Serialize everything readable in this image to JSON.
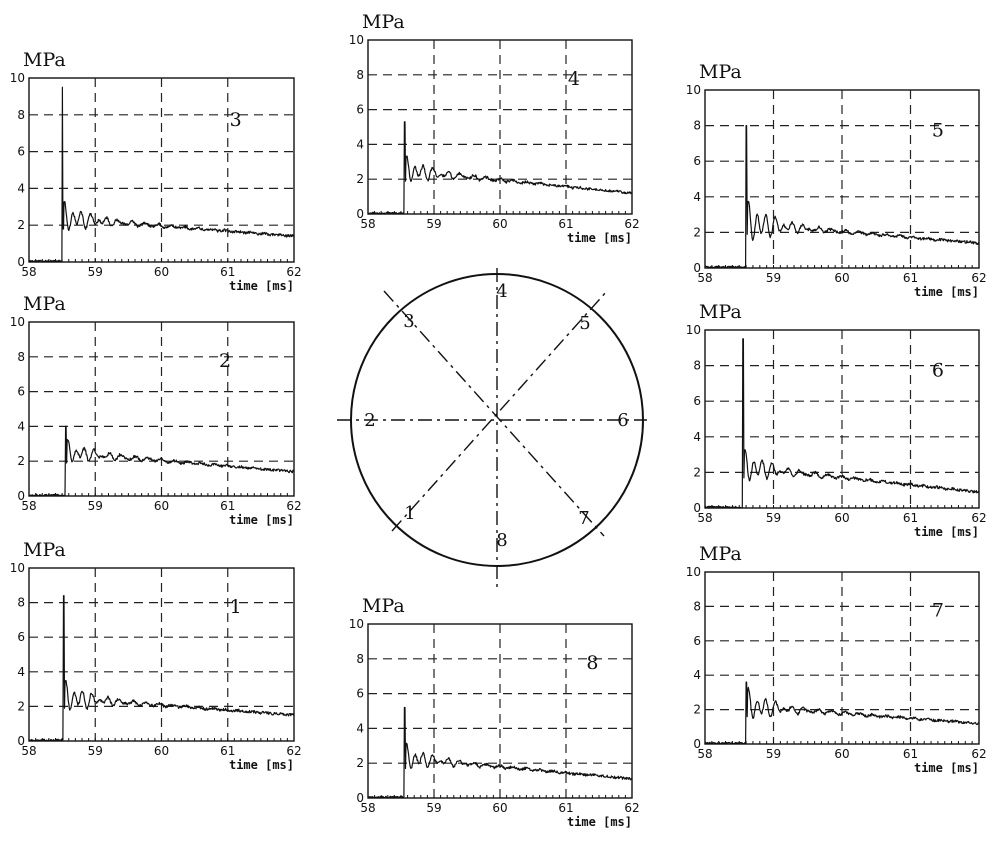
{
  "chart_data": [
    {
      "type": "line",
      "id": "1",
      "ylabel": "MPa",
      "xlabel": "time [ms]",
      "panel_label": "1",
      "xlim": [
        58,
        62
      ],
      "ylim": [
        0,
        10
      ],
      "grid": true,
      "xticks": [
        "58",
        "59",
        "60",
        "61",
        "62"
      ],
      "yticks": [
        "0",
        "2",
        "4",
        "6",
        "8",
        "10"
      ],
      "series": [
        {
          "onset": 58.52,
          "peak": 8.4,
          "osc": 0.9,
          "level_start": 2.5,
          "level_end": 1.5
        }
      ]
    },
    {
      "type": "line",
      "id": "2",
      "ylabel": "MPa",
      "xlabel": "time [ms]",
      "panel_label": "2",
      "xlim": [
        58,
        62
      ],
      "ylim": [
        0,
        10
      ],
      "grid": true,
      "xticks": [
        "58",
        "59",
        "60",
        "61",
        "62"
      ],
      "yticks": [
        "0",
        "2",
        "4",
        "6",
        "8",
        "10"
      ],
      "series": [
        {
          "onset": 58.55,
          "peak": 4.0,
          "osc": 0.6,
          "level_start": 2.5,
          "level_end": 1.4
        }
      ]
    },
    {
      "type": "line",
      "id": "3",
      "ylabel": "MPa",
      "xlabel": "time [ms]",
      "panel_label": "3",
      "xlim": [
        58,
        62
      ],
      "ylim": [
        0,
        10
      ],
      "grid": true,
      "xticks": [
        "58",
        "59",
        "60",
        "61",
        "62"
      ],
      "yticks": [
        "0",
        "2",
        "4",
        "6",
        "8",
        "10"
      ],
      "series": [
        {
          "onset": 58.5,
          "peak": 9.5,
          "osc": 0.8,
          "level_start": 2.4,
          "level_end": 1.4
        }
      ]
    },
    {
      "type": "line",
      "id": "4",
      "ylabel": "MPa",
      "xlabel": "time [ms]",
      "panel_label": "4",
      "xlim": [
        58,
        62
      ],
      "ylim": [
        0,
        10
      ],
      "grid": true,
      "xticks": [
        "58",
        "59",
        "60",
        "61",
        "62"
      ],
      "yticks": [
        "0",
        "2",
        "4",
        "6",
        "8",
        "10"
      ],
      "series": [
        {
          "onset": 58.55,
          "peak": 5.3,
          "osc": 0.7,
          "level_start": 2.5,
          "level_end": 1.2
        }
      ]
    },
    {
      "type": "line",
      "id": "5",
      "ylabel": "MPa",
      "xlabel": "time [ms]",
      "panel_label": "5",
      "xlim": [
        58,
        62
      ],
      "ylim": [
        0,
        10
      ],
      "grid": true,
      "xticks": [
        "58",
        "59",
        "60",
        "61",
        "62"
      ],
      "yticks": [
        "0",
        "2",
        "4",
        "6",
        "8",
        "10"
      ],
      "series": [
        {
          "onset": 58.6,
          "peak": 8.0,
          "osc": 1.2,
          "level_start": 2.5,
          "level_end": 1.4
        }
      ]
    },
    {
      "type": "line",
      "id": "6",
      "ylabel": "MPa",
      "xlabel": "time [ms]",
      "panel_label": "6",
      "xlim": [
        58,
        62
      ],
      "ylim": [
        0,
        10
      ],
      "grid": true,
      "xticks": [
        "58",
        "59",
        "60",
        "61",
        "62"
      ],
      "yticks": [
        "0",
        "2",
        "4",
        "6",
        "8",
        "10"
      ],
      "series": [
        {
          "onset": 58.55,
          "peak": 9.5,
          "osc": 0.9,
          "level_start": 2.3,
          "level_end": 0.9
        }
      ]
    },
    {
      "type": "line",
      "id": "7",
      "ylabel": "MPa",
      "xlabel": "time [ms]",
      "panel_label": "7",
      "xlim": [
        58,
        62
      ],
      "ylim": [
        0,
        10
      ],
      "grid": true,
      "xticks": [
        "58",
        "59",
        "60",
        "61",
        "62"
      ],
      "yticks": [
        "0",
        "2",
        "4",
        "6",
        "8",
        "10"
      ],
      "series": [
        {
          "onset": 58.6,
          "peak": 3.6,
          "osc": 0.9,
          "level_start": 2.2,
          "level_end": 1.2
        }
      ]
    },
    {
      "type": "line",
      "id": "8",
      "ylabel": "MPa",
      "xlabel": "time [ms]",
      "panel_label": "8",
      "xlim": [
        58,
        62
      ],
      "ylim": [
        0,
        10
      ],
      "grid": true,
      "xticks": [
        "58",
        "59",
        "60",
        "61",
        "62"
      ],
      "yticks": [
        "0",
        "2",
        "4",
        "6",
        "8",
        "10"
      ],
      "series": [
        {
          "onset": 58.55,
          "peak": 5.2,
          "osc": 0.7,
          "level_start": 2.3,
          "level_end": 1.1
        }
      ]
    }
  ],
  "diagram": {
    "labels": [
      "1",
      "2",
      "3",
      "4",
      "5",
      "6",
      "7",
      "8"
    ]
  }
}
